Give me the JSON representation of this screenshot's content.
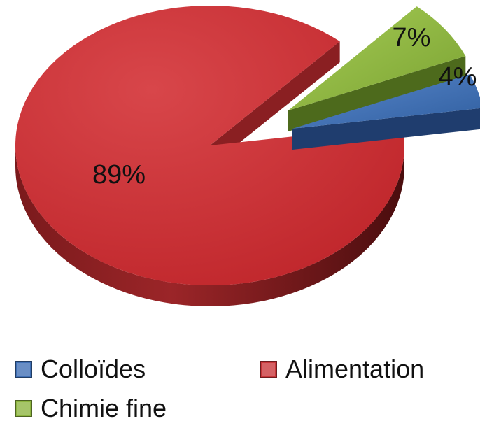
{
  "chart_data": {
    "type": "pie",
    "style": "3d-exploded",
    "series": [
      {
        "values": [
          4,
          89,
          7
        ],
        "labels": [
          "Colloïdes",
          "Alimentation",
          "Chimie fine"
        ],
        "data_labels": [
          "4%",
          "89%",
          "7%"
        ],
        "colors": [
          "#3f6fb5",
          "#c9363a",
          "#8db53f"
        ],
        "side_colors": [
          "#1f3d6e",
          "#6a1517",
          "#4d6a1c"
        ]
      }
    ],
    "legend": {
      "placement": "bottom",
      "entries": [
        {
          "label": "Colloïdes",
          "color": "#3f6fb5"
        },
        {
          "label": "Alimentation",
          "color": "#c9363a"
        },
        {
          "label": "Chimie fine",
          "color": "#8db53f"
        }
      ]
    }
  }
}
